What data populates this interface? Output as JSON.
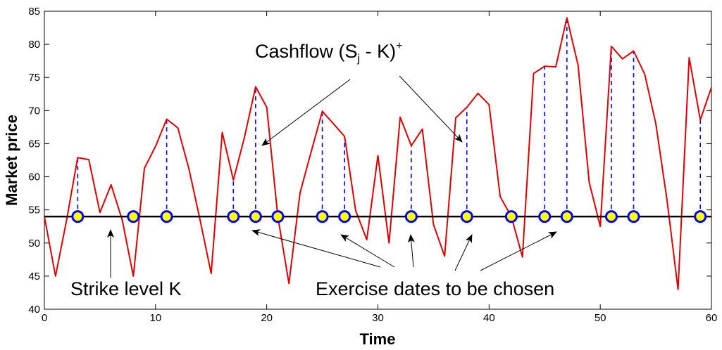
{
  "chart_data": {
    "type": "line",
    "xlabel": "Time",
    "ylabel": "Market price",
    "xlim": [
      0,
      60
    ],
    "ylim": [
      40,
      85
    ],
    "xticks": [
      0,
      10,
      20,
      30,
      40,
      50,
      60
    ],
    "yticks": [
      40,
      45,
      50,
      55,
      60,
      65,
      70,
      75,
      80,
      85
    ],
    "grid": false,
    "strike": 54,
    "colors": {
      "price": "#e00000",
      "strike": "#000000",
      "cashflow": "#0000ff",
      "marker_fill": "#ffff00",
      "marker_edge": "#0000ff"
    },
    "price": {
      "x": [
        0,
        1,
        2,
        3,
        4,
        5,
        6,
        7,
        8,
        9,
        10,
        11,
        12,
        13,
        14,
        15,
        16,
        17,
        18,
        19,
        20,
        21,
        22,
        23,
        24,
        25,
        26,
        27,
        28,
        29,
        30,
        31,
        32,
        33,
        34,
        35,
        36,
        37,
        38,
        39,
        40,
        41,
        42,
        43,
        44,
        45,
        46,
        47,
        48,
        49,
        50,
        51,
        52,
        53,
        54,
        55,
        56,
        57,
        58,
        59,
        60
      ],
      "y": [
        54,
        45,
        53.5,
        62.9,
        62.6,
        54.6,
        58.8,
        53.5,
        45,
        61.3,
        64.6,
        68.7,
        67.4,
        61.2,
        53.5,
        45.4,
        66.7,
        59.5,
        66,
        73.6,
        70.5,
        54,
        43.9,
        57.6,
        63.8,
        69.9,
        68,
        66.1,
        54.9,
        50.5,
        63.2,
        50,
        69,
        64.7,
        67.2,
        52.8,
        48,
        68.9,
        70.5,
        72.6,
        70.9,
        57,
        54,
        47.9,
        75.6,
        76.7,
        76.6,
        84,
        76.9,
        59.2,
        52.5,
        79.7,
        77.8,
        79,
        75.5,
        68,
        56.5,
        43,
        78,
        68.6,
        73.5
      ]
    },
    "exercise_dates": [
      3,
      8,
      11,
      17,
      19,
      21,
      25,
      27,
      33,
      38,
      42,
      45,
      47,
      51,
      53,
      59
    ],
    "annotations": [
      {
        "text": "Cashflow  (S",
        "sub": "j",
        "rest": " - K)",
        "sup": "+",
        "text_pos": [
          0,
          0
        ],
        "arrows": []
      },
      {
        "text": "Strike level K"
      },
      {
        "text": "Exercise dates to be chosen"
      }
    ]
  }
}
